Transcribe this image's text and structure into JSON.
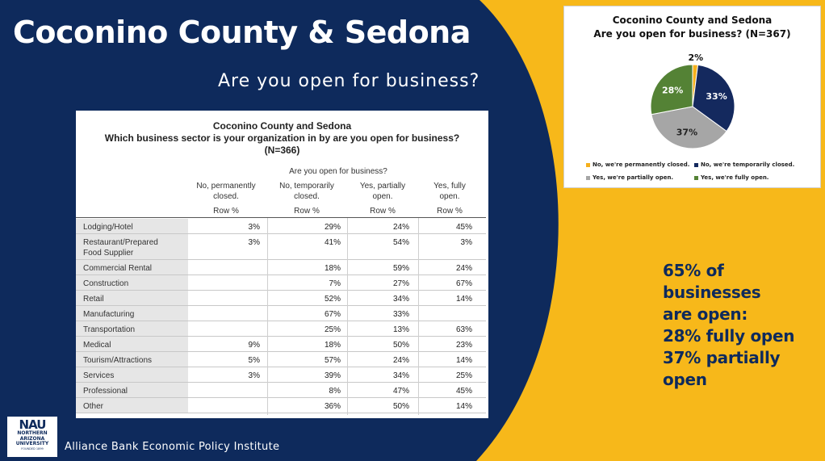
{
  "slide": {
    "title": "Coconino County & Sedona",
    "subtitle": "Are you open for business?",
    "footer": "Alliance Bank Economic Policy Institute",
    "logo_text": "NAU",
    "logo_sub1": "NORTHERN",
    "logo_sub2": "ARIZONA",
    "logo_sub3": "UNIVERSITY",
    "logo_founded": "FOUNDED 1899"
  },
  "colors": {
    "navy": "#0e2a5c",
    "gold": "#f7b81a",
    "pie_closed": "#f5b01c",
    "pie_temp": "#14295e",
    "pie_partial": "#a6a6a6",
    "pie_full": "#548235"
  },
  "table": {
    "title_line1": "Coconino County and Sedona",
    "title_line2": "Which business sector is your organization in by are you open for business?",
    "title_line3": "(N=366)",
    "group_header": "Are you open for business?",
    "columns": [
      {
        "line1": "No, permanently",
        "line2": "closed.",
        "sub": "Row %"
      },
      {
        "line1": "No, temporarily",
        "line2": "closed.",
        "sub": "Row %"
      },
      {
        "line1": "Yes, partially",
        "line2": "open.",
        "sub": "Row %"
      },
      {
        "line1": "Yes, fully",
        "line2": "open.",
        "sub": "Row %"
      }
    ],
    "rows": [
      {
        "label1": "Lodging/Hotel",
        "label2": "",
        "values": [
          "3%",
          "29%",
          "24%",
          "45%"
        ]
      },
      {
        "label1": "Restaurant/Prepared",
        "label2": "Food Supplier",
        "values": [
          "3%",
          "41%",
          "54%",
          "3%"
        ]
      },
      {
        "label1": "Commercial Rental",
        "label2": "",
        "values": [
          "",
          "18%",
          "59%",
          "24%"
        ]
      },
      {
        "label1": "Construction",
        "label2": "",
        "values": [
          "",
          "7%",
          "27%",
          "67%"
        ]
      },
      {
        "label1": "Retail",
        "label2": "",
        "values": [
          "",
          "52%",
          "34%",
          "14%"
        ]
      },
      {
        "label1": "Manufacturing",
        "label2": "",
        "values": [
          "",
          "67%",
          "33%",
          ""
        ]
      },
      {
        "label1": "Transportation",
        "label2": "",
        "values": [
          "",
          "25%",
          "13%",
          "63%"
        ]
      },
      {
        "label1": "Medical",
        "label2": "",
        "values": [
          "9%",
          "18%",
          "50%",
          "23%"
        ]
      },
      {
        "label1": "Tourism/Attractions",
        "label2": "",
        "values": [
          "5%",
          "57%",
          "24%",
          "14%"
        ]
      },
      {
        "label1": "Services",
        "label2": "",
        "values": [
          "3%",
          "39%",
          "34%",
          "25%"
        ]
      },
      {
        "label1": "Professional",
        "label2": "",
        "values": [
          "",
          "8%",
          "47%",
          "45%"
        ]
      },
      {
        "label1": "Other",
        "label2": "",
        "values": [
          "",
          "36%",
          "50%",
          "14%"
        ]
      }
    ]
  },
  "chart_data": {
    "type": "pie",
    "title": "Coconino County and Sedona",
    "subtitle": "Are you open for business? (N=367)",
    "slices": [
      {
        "label": "No, we're permanently closed.",
        "value": 2,
        "display": "2%"
      },
      {
        "label": "No, we're temporarily closed.",
        "value": 33,
        "display": "33%"
      },
      {
        "label": "Yes, we're partially open.",
        "value": 37,
        "display": "37%"
      },
      {
        "label": "Yes, we're fully open.",
        "value": 28,
        "display": "28%"
      }
    ],
    "legend_position": "bottom"
  },
  "callout": {
    "line1": "65% of businesses",
    "line2": "are open:",
    "line3": "28% fully open",
    "line4": "37% partially open"
  }
}
